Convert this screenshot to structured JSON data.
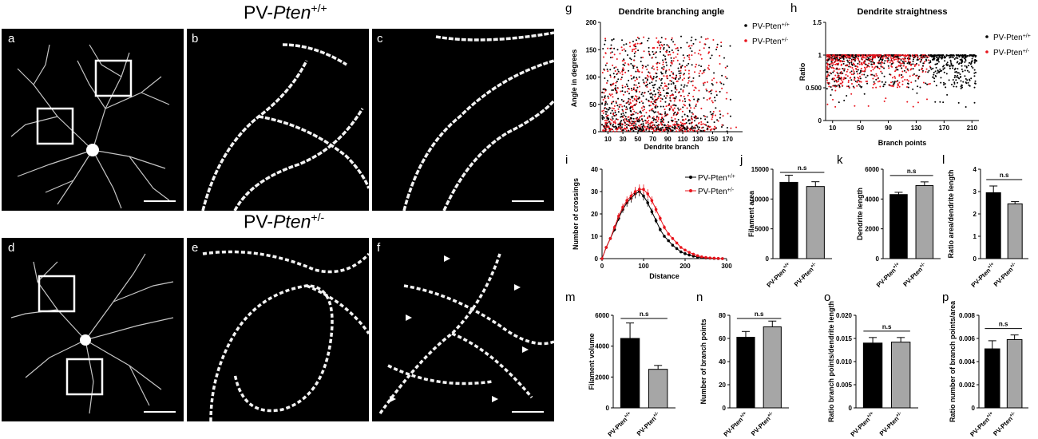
{
  "rows": {
    "top_title": {
      "prefix": "PV-",
      "italic": "Pten",
      "sup": "+/+"
    },
    "bottom_title": {
      "prefix": "PV-",
      "italic": "Pten",
      "sup": "+/-"
    }
  },
  "panel_labels": {
    "a": "a",
    "b": "b",
    "c": "c",
    "d": "d",
    "e": "e",
    "f": "f",
    "g": "g",
    "h": "h",
    "i": "i",
    "j": "j",
    "k": "k",
    "l": "l",
    "m": "m",
    "n": "n",
    "o": "o",
    "p": "p"
  },
  "colors": {
    "wt": "#000000",
    "het": "#e8141c",
    "bar_het": "#a6a6a6"
  },
  "genotypes": {
    "wt": "PV-Pten+/+",
    "het": "PV-Pten+/-"
  },
  "chart_data": [
    {
      "id": "g",
      "type": "scatter",
      "title": "Dendrite branching angle",
      "xlabel": "Dendrite branch",
      "ylabel": "Angle in degrees",
      "xticks": [
        10,
        30,
        50,
        70,
        90,
        110,
        130,
        150,
        170
      ],
      "xlim": [
        0,
        190
      ],
      "yticks": [
        0,
        50,
        100,
        150,
        200
      ],
      "ylim": [
        0,
        200
      ],
      "legend": "top-right",
      "series": [
        {
          "name": "PV-Pten+/+"
        },
        {
          "name": "PV-Pten+/-"
        }
      ]
    },
    {
      "id": "h",
      "type": "scatter",
      "title": "Dendrite straightness",
      "xlabel": "Branch points",
      "ylabel": "Ratio",
      "xticks": [
        10,
        50,
        90,
        130,
        170,
        210
      ],
      "xlim": [
        0,
        220
      ],
      "yticks": [
        0.0,
        0.5,
        1.0,
        1.5
      ],
      "ylim": [
        0,
        1.5
      ],
      "legend": "top-right",
      "series": [
        {
          "name": "PV-Pten+/+"
        },
        {
          "name": "PV-Pten+/-"
        }
      ]
    },
    {
      "id": "i",
      "type": "line",
      "xlabel": "Distance",
      "ylabel": "Number of crossings",
      "xticks": [
        0,
        100,
        200,
        300
      ],
      "xlim": [
        0,
        300
      ],
      "yticks": [
        0,
        10,
        20,
        30,
        40
      ],
      "ylim": [
        0,
        40
      ],
      "legend": "top-right",
      "x": [
        0,
        10,
        20,
        30,
        40,
        50,
        60,
        70,
        80,
        90,
        100,
        110,
        120,
        130,
        140,
        150,
        160,
        170,
        180,
        190,
        200,
        210,
        220,
        230,
        240,
        250,
        260,
        270,
        280,
        290
      ],
      "series": [
        {
          "name": "PV-Pten+/+",
          "values": [
            0,
            5,
            9,
            13,
            18,
            22,
            25,
            27,
            29,
            30,
            28,
            25,
            21,
            17,
            13,
            10,
            8,
            6,
            4.5,
            3,
            2.2,
            1.6,
            1.1,
            0.7,
            0.5,
            0.3,
            0.2,
            0.1,
            0,
            0
          ]
        },
        {
          "name": "PV-Pten+/-",
          "values": [
            0,
            5,
            9,
            14,
            19,
            23,
            26,
            28,
            30,
            31,
            31,
            29,
            26,
            22,
            18,
            14,
            11,
            9,
            7,
            5,
            3.8,
            2.8,
            2,
            1.3,
            0.8,
            0.5,
            0.3,
            0.2,
            0.1,
            0
          ]
        }
      ]
    },
    {
      "id": "j",
      "type": "bar",
      "ylabel": "Filament area",
      "yticks": [
        0,
        5000,
        10000,
        15000
      ],
      "ylim": [
        0,
        15000
      ],
      "categories": [
        "PV-Pten+/+",
        "PV-Pten+/-"
      ],
      "values": [
        12800,
        12100
      ],
      "errors": [
        1200,
        800
      ],
      "sig": "n.s"
    },
    {
      "id": "k",
      "type": "bar",
      "ylabel": "Dendrite length",
      "yticks": [
        0,
        2000,
        4000,
        6000
      ],
      "ylim": [
        0,
        6000
      ],
      "categories": [
        "PV-Pten+/+",
        "PV-Pten+/-"
      ],
      "values": [
        4300,
        4900
      ],
      "errors": [
        150,
        250
      ],
      "sig": "n.s"
    },
    {
      "id": "l",
      "type": "bar",
      "ylabel": "Ratio area/dendrite length",
      "yticks": [
        0,
        1,
        2,
        3,
        4
      ],
      "ylim": [
        0,
        4
      ],
      "categories": [
        "PV-Pten+/+",
        "PV-Pten+/-"
      ],
      "values": [
        2.95,
        2.45
      ],
      "errors": [
        0.3,
        0.1
      ],
      "sig": "n.s"
    },
    {
      "id": "m",
      "type": "bar",
      "ylabel": "Filament volume",
      "yticks": [
        0,
        2000,
        4000,
        6000
      ],
      "ylim": [
        0,
        6000
      ],
      "categories": [
        "PV-Pten+/+",
        "PV-Pten+/-"
      ],
      "values": [
        4500,
        2500
      ],
      "errors": [
        1000,
        250
      ],
      "sig": "n.s"
    },
    {
      "id": "n",
      "type": "bar",
      "ylabel": "Number of branch points",
      "yticks": [
        0,
        20,
        40,
        60,
        80
      ],
      "ylim": [
        0,
        80
      ],
      "categories": [
        "PV-Pten+/+",
        "PV-Pten+/-"
      ],
      "values": [
        61,
        70
      ],
      "errors": [
        5,
        5
      ],
      "sig": "n.s"
    },
    {
      "id": "o",
      "type": "bar",
      "ylabel": "Ratio branch points/dendrite length",
      "yticks": [
        0.0,
        0.005,
        0.01,
        0.015,
        0.02
      ],
      "ylim": [
        0,
        0.02
      ],
      "categories": [
        "PV-Pten+/+",
        "PV-Pten+/-"
      ],
      "values": [
        0.014,
        0.0142
      ],
      "errors": [
        0.0012,
        0.001
      ],
      "sig": "n.s"
    },
    {
      "id": "p",
      "type": "bar",
      "ylabel": "Ratio number of branch points/area",
      "yticks": [
        0.0,
        0.002,
        0.004,
        0.006,
        0.008
      ],
      "ylim": [
        0,
        0.008
      ],
      "categories": [
        "PV-Pten+/+",
        "PV-Pten+/-"
      ],
      "values": [
        0.0051,
        0.0059
      ],
      "errors": [
        0.0007,
        0.0004
      ],
      "sig": "n.s"
    }
  ]
}
